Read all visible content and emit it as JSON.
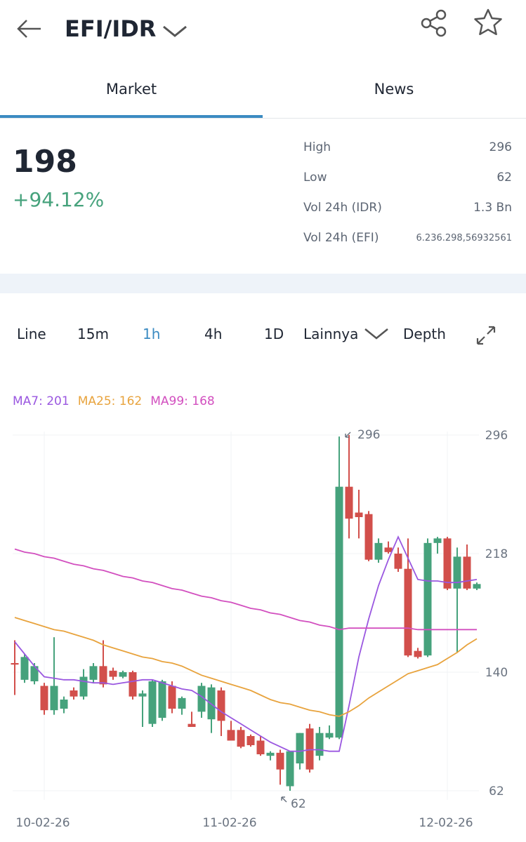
{
  "header": {
    "title": "EFI/IDR"
  },
  "tabs": [
    "Market",
    "News"
  ],
  "price": {
    "last": "198",
    "change": "+94.12%"
  },
  "stats": [
    [
      "High",
      "296"
    ],
    [
      "Low",
      "62"
    ],
    [
      "Vol 24h (IDR)",
      "1.3 Bn"
    ],
    [
      "Vol 24h (EFI)",
      "6.236.298,56932561"
    ]
  ],
  "timeframes": [
    "Line",
    "15m",
    "1h",
    "4h",
    "1D",
    "Lainnya",
    "Depth"
  ],
  "chart_data": {
    "type": "candlestick",
    "categories": [
      null,
      null,
      null,
      "10-02-26",
      null,
      null,
      null,
      null,
      null,
      null,
      null,
      null,
      null,
      null,
      null,
      null,
      null,
      null,
      null,
      null,
      null,
      null,
      "11-02-26",
      null,
      null,
      null,
      null,
      null,
      null,
      null,
      null,
      null,
      null,
      null,
      null,
      null,
      null,
      null,
      null,
      null,
      null,
      null,
      null,
      null,
      "12-02-26",
      null,
      null,
      null
    ],
    "open": [
      146,
      135,
      134,
      131,
      115,
      116,
      128,
      124,
      135,
      144,
      141,
      137,
      140,
      124,
      106,
      110,
      131,
      116,
      106,
      114,
      109,
      128,
      102,
      102,
      98,
      95,
      85,
      87,
      65,
      80,
      103,
      85,
      97,
      97,
      262,
      245,
      244,
      214,
      222,
      218,
      208,
      154,
      151,
      225,
      228,
      195,
      216,
      195
    ],
    "high": [
      161,
      152,
      146,
      133,
      163,
      124,
      130,
      142,
      146,
      161,
      143,
      141,
      141,
      128,
      135,
      135,
      134,
      124,
      114,
      133,
      132,
      130,
      108,
      104,
      99,
      98,
      88,
      89,
      88,
      100,
      106,
      104,
      105,
      295,
      296,
      260,
      246,
      228,
      226,
      222,
      228,
      156,
      228,
      229,
      229,
      222,
      224,
      199
    ],
    "low": [
      125,
      133,
      132,
      112,
      112,
      113,
      122,
      122,
      133,
      130,
      135,
      136,
      122,
      104,
      104,
      108,
      113,
      112,
      104,
      110,
      100,
      98,
      95,
      90,
      91,
      85,
      82,
      66,
      62,
      76,
      74,
      82,
      96,
      96,
      228,
      228,
      213,
      212,
      218,
      206,
      150,
      149,
      150,
      218,
      194,
      153,
      194,
      194
    ],
    "close": [
      145,
      150,
      144,
      115,
      131,
      122,
      124,
      137,
      144,
      132,
      137,
      140,
      124,
      126,
      134,
      134,
      116,
      123,
      104,
      131,
      130,
      108,
      95,
      91,
      92,
      86,
      87,
      76,
      88,
      100,
      76,
      100,
      100,
      262,
      241,
      242,
      214,
      225,
      219,
      208,
      151,
      150,
      225,
      228,
      195,
      216,
      195,
      198
    ],
    "up_color": "#46a27c",
    "down_color": "#d24f4b",
    "series": [
      {
        "name": "MA7: 201",
        "color": "#9a57e0",
        "values": [
          160,
          152,
          144,
          137,
          136,
          135,
          135,
          134,
          133,
          133,
          132,
          133,
          134,
          135,
          135,
          133,
          131,
          129,
          128,
          124,
          119,
          114,
          110,
          106,
          102,
          98,
          94,
          91,
          88,
          88,
          89,
          89,
          88,
          88,
          118,
          150,
          175,
          197,
          214,
          229,
          215,
          201,
          200,
          200,
          199,
          199,
          200,
          201
        ]
      },
      {
        "name": "MA25: 162",
        "color": "#e8a33d",
        "values": [
          176,
          174,
          172,
          170,
          168,
          167,
          165,
          163,
          161,
          158,
          156,
          154,
          152,
          150,
          149,
          147,
          146,
          144,
          141,
          138,
          136,
          134,
          132,
          130,
          128,
          125,
          122,
          120,
          119,
          117,
          115,
          114,
          112,
          111,
          114,
          118,
          123,
          127,
          131,
          135,
          139,
          141,
          143,
          145,
          149,
          153,
          158,
          162
        ]
      },
      {
        "name": "MA99: 168",
        "color": "#d24fbf",
        "values": [
          221,
          219,
          218,
          216,
          215,
          213,
          211,
          210,
          208,
          207,
          205,
          203,
          202,
          200,
          199,
          197,
          195,
          194,
          192,
          190,
          189,
          187,
          186,
          184,
          182,
          181,
          179,
          178,
          176,
          174,
          173,
          171,
          170,
          168,
          169,
          169,
          169,
          169,
          169,
          169,
          169,
          168,
          168,
          168,
          168,
          168,
          168,
          168
        ]
      }
    ],
    "annotations": [
      296,
      62
    ],
    "ylim": [
      56,
      302
    ],
    "yticks": [
      62,
      140,
      218,
      296
    ],
    "grid": true
  }
}
